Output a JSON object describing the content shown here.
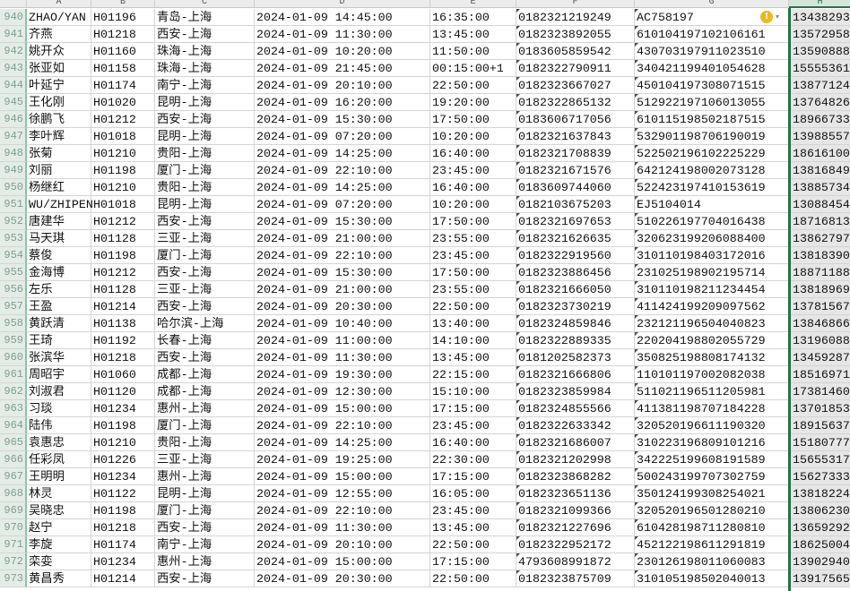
{
  "columns": [
    "A",
    "B",
    "C",
    "D",
    "E",
    "F",
    "G",
    "H"
  ],
  "selected_column": "H",
  "accent_color": "#217346",
  "warning_icon": "exclamation-circle-icon",
  "rows": [
    {
      "n": "940",
      "a": "ZHAO/YAN",
      "b": "H01196",
      "c": "青岛-上海",
      "d": "2024-01-09 14:45:00",
      "e": "16:35:00",
      "f": "0182321219249",
      "g": "AC758197",
      "h": "13438293"
    },
    {
      "n": "941",
      "a": "齐燕",
      "b": "H01218",
      "c": "西安-上海",
      "d": "2024-01-09 11:30:00",
      "e": "13:45:00",
      "f": "0182323892055",
      "g": "610104197102106161",
      "h": "13572958"
    },
    {
      "n": "942",
      "a": "姚开众",
      "b": "H01160",
      "c": "珠海-上海",
      "d": "2024-01-09 10:20:00",
      "e": "11:50:00",
      "f": "0183605859542",
      "g": "430703197911023510",
      "h": "13590888"
    },
    {
      "n": "943",
      "a": "张亚如",
      "b": "H01158",
      "c": "珠海-上海",
      "d": "2024-01-09 21:45:00",
      "e": "00:15:00+1",
      "f": "0182322790911",
      "g": "340421199401054628",
      "h": "15555361"
    },
    {
      "n": "944",
      "a": "叶延宁",
      "b": "H01174",
      "c": "南宁-上海",
      "d": "2024-01-09 20:10:00",
      "e": "22:50:00",
      "f": "0182323667027",
      "g": "450104197308071515",
      "h": "13877124"
    },
    {
      "n": "945",
      "a": "王化刚",
      "b": "H01020",
      "c": "昆明-上海",
      "d": "2024-01-09 16:20:00",
      "e": "19:20:00",
      "f": "0182322865132",
      "g": "512922197106013055",
      "h": "13764826"
    },
    {
      "n": "946",
      "a": "徐鹏飞",
      "b": "H01212",
      "c": "西安-上海",
      "d": "2024-01-09 15:30:00",
      "e": "17:50:00",
      "f": "0183606717056",
      "g": "610115198502187515",
      "h": "18966733"
    },
    {
      "n": "947",
      "a": "李叶辉",
      "b": "H01018",
      "c": "昆明-上海",
      "d": "2024-01-09 07:20:00",
      "e": "10:20:00",
      "f": "0182321637843",
      "g": "532901198706190019",
      "h": "13988557"
    },
    {
      "n": "948",
      "a": "张菊",
      "b": "H01210",
      "c": "贵阳-上海",
      "d": "2024-01-09 14:25:00",
      "e": "16:40:00",
      "f": "0182321708839",
      "g": "522502196102225229",
      "h": "18616100"
    },
    {
      "n": "949",
      "a": "刘丽",
      "b": "H01198",
      "c": "厦门-上海",
      "d": "2024-01-09 22:10:00",
      "e": "23:45:00",
      "f": "0182321671576",
      "g": "642124198002073128",
      "h": "13816849"
    },
    {
      "n": "950",
      "a": "杨继红",
      "b": "H01210",
      "c": "贵阳-上海",
      "d": "2024-01-09 14:25:00",
      "e": "16:40:00",
      "f": "0183609744060",
      "g": "522423197410153619",
      "h": "13885734"
    },
    {
      "n": "951",
      "a": "WU/ZHIPEN",
      "b": "H01018",
      "c": "昆明-上海",
      "d": "2024-01-09 07:20:00",
      "e": "10:20:00",
      "f": "0182103675203",
      "g": "EJ5104014",
      "h": "13088454"
    },
    {
      "n": "952",
      "a": "唐建华",
      "b": "H01212",
      "c": "西安-上海",
      "d": "2024-01-09 15:30:00",
      "e": "17:50:00",
      "f": "0182321697653",
      "g": "510226197704016438",
      "h": "18716813"
    },
    {
      "n": "953",
      "a": "马天琪",
      "b": "H01128",
      "c": "三亚-上海",
      "d": "2024-01-09 21:00:00",
      "e": "23:55:00",
      "f": "0182321626635",
      "g": "320623199206088400",
      "h": "13862797"
    },
    {
      "n": "954",
      "a": "蔡俊",
      "b": "H01198",
      "c": "厦门-上海",
      "d": "2024-01-09 22:10:00",
      "e": "23:45:00",
      "f": "0182322919560",
      "g": "310110198403172016",
      "h": "13818390"
    },
    {
      "n": "955",
      "a": "金海博",
      "b": "H01212",
      "c": "西安-上海",
      "d": "2024-01-09 15:30:00",
      "e": "17:50:00",
      "f": "0182323886456",
      "g": "231025198902195714",
      "h": "18871188"
    },
    {
      "n": "956",
      "a": "左乐",
      "b": "H01128",
      "c": "三亚-上海",
      "d": "2024-01-09 21:00:00",
      "e": "23:55:00",
      "f": "0182321666050",
      "g": "310110198211234454",
      "h": "13818969"
    },
    {
      "n": "957",
      "a": "王盈",
      "b": "H01214",
      "c": "西安-上海",
      "d": "2024-01-09 20:30:00",
      "e": "22:50:00",
      "f": "0182323730219",
      "g": "411424199209097562",
      "h": "13781567"
    },
    {
      "n": "958",
      "a": "黄跃清",
      "b": "H01138",
      "c": "哈尔滨-上海",
      "d": "2024-01-09 10:40:00",
      "e": "13:40:00",
      "f": "0182324859846",
      "g": "232121196504040823",
      "h": "13846866"
    },
    {
      "n": "959",
      "a": "王琦",
      "b": "H01192",
      "c": "长春-上海",
      "d": "2024-01-09 11:00:00",
      "e": "14:10:00",
      "f": "0182322889335",
      "g": "220204198802055729",
      "h": "13196088"
    },
    {
      "n": "960",
      "a": "张滨华",
      "b": "H01218",
      "c": "西安-上海",
      "d": "2024-01-09 11:30:00",
      "e": "13:45:00",
      "f": "0181202582373",
      "g": "350825198808174132",
      "h": "13459287"
    },
    {
      "n": "961",
      "a": "周昭宇",
      "b": "H01060",
      "c": "成都-上海",
      "d": "2024-01-09 19:30:00",
      "e": "22:15:00",
      "f": "0182321666806",
      "g": "110101197002082038",
      "h": "18516971"
    },
    {
      "n": "962",
      "a": "刘淑君",
      "b": "H01120",
      "c": "成都-上海",
      "d": "2024-01-09 12:30:00",
      "e": "15:10:00",
      "f": "0182323859984",
      "g": "511021196511205981",
      "h": "17381460"
    },
    {
      "n": "963",
      "a": "习琰",
      "b": "H01234",
      "c": "惠州-上海",
      "d": "2024-01-09 15:00:00",
      "e": "17:15:00",
      "f": "0182324855566",
      "g": "411381198707184228",
      "h": "13701853"
    },
    {
      "n": "964",
      "a": "陆伟",
      "b": "H01198",
      "c": "厦门-上海",
      "d": "2024-01-09 22:10:00",
      "e": "23:45:00",
      "f": "0182322633342",
      "g": "320520196611190320",
      "h": "18915637"
    },
    {
      "n": "965",
      "a": "袁惠忠",
      "b": "H01210",
      "c": "贵阳-上海",
      "d": "2024-01-09 14:25:00",
      "e": "16:40:00",
      "f": "0182321686007",
      "g": "310223196809101216",
      "h": "15180777"
    },
    {
      "n": "966",
      "a": "任彩凤",
      "b": "H01226",
      "c": "三亚-上海",
      "d": "2024-01-09 19:25:00",
      "e": "22:30:00",
      "f": "0182321202998",
      "g": "342225199608191589",
      "h": "15655317"
    },
    {
      "n": "967",
      "a": "王明明",
      "b": "H01234",
      "c": "惠州-上海",
      "d": "2024-01-09 15:00:00",
      "e": "17:15:00",
      "f": "0182323868282",
      "g": "500243199707302759",
      "h": "15627333"
    },
    {
      "n": "968",
      "a": "林灵",
      "b": "H01122",
      "c": "昆明-上海",
      "d": "2024-01-09 12:55:00",
      "e": "16:05:00",
      "f": "0182323651136",
      "g": "350124199308254021",
      "h": "13818224"
    },
    {
      "n": "969",
      "a": "吴晓忠",
      "b": "H01198",
      "c": "厦门-上海",
      "d": "2024-01-09 22:10:00",
      "e": "23:45:00",
      "f": "0182321099366",
      "g": "320520196501280210",
      "h": "13806230"
    },
    {
      "n": "970",
      "a": "赵宁",
      "b": "H01218",
      "c": "西安-上海",
      "d": "2024-01-09 11:30:00",
      "e": "13:45:00",
      "f": "0182321227696",
      "g": "610428198711280810",
      "h": "13659292"
    },
    {
      "n": "971",
      "a": "李旋",
      "b": "H01174",
      "c": "南宁-上海",
      "d": "2024-01-09 20:10:00",
      "e": "22:50:00",
      "f": "0182322952172",
      "g": "452122198611291819",
      "h": "18625004"
    },
    {
      "n": "972",
      "a": "栾娈",
      "b": "H01234",
      "c": "惠州-上海",
      "d": "2024-01-09 15:00:00",
      "e": "17:15:00",
      "f": "4793608991872",
      "g": "230126198011060083",
      "h": "13902940"
    },
    {
      "n": "973",
      "a": "黄昌秀",
      "b": "H01214",
      "c": "西安-上海",
      "d": "2024-01-09 20:30:00",
      "e": "22:50:00",
      "f": "0182323875709",
      "g": "310105198502040013",
      "h": "13917565"
    }
  ]
}
